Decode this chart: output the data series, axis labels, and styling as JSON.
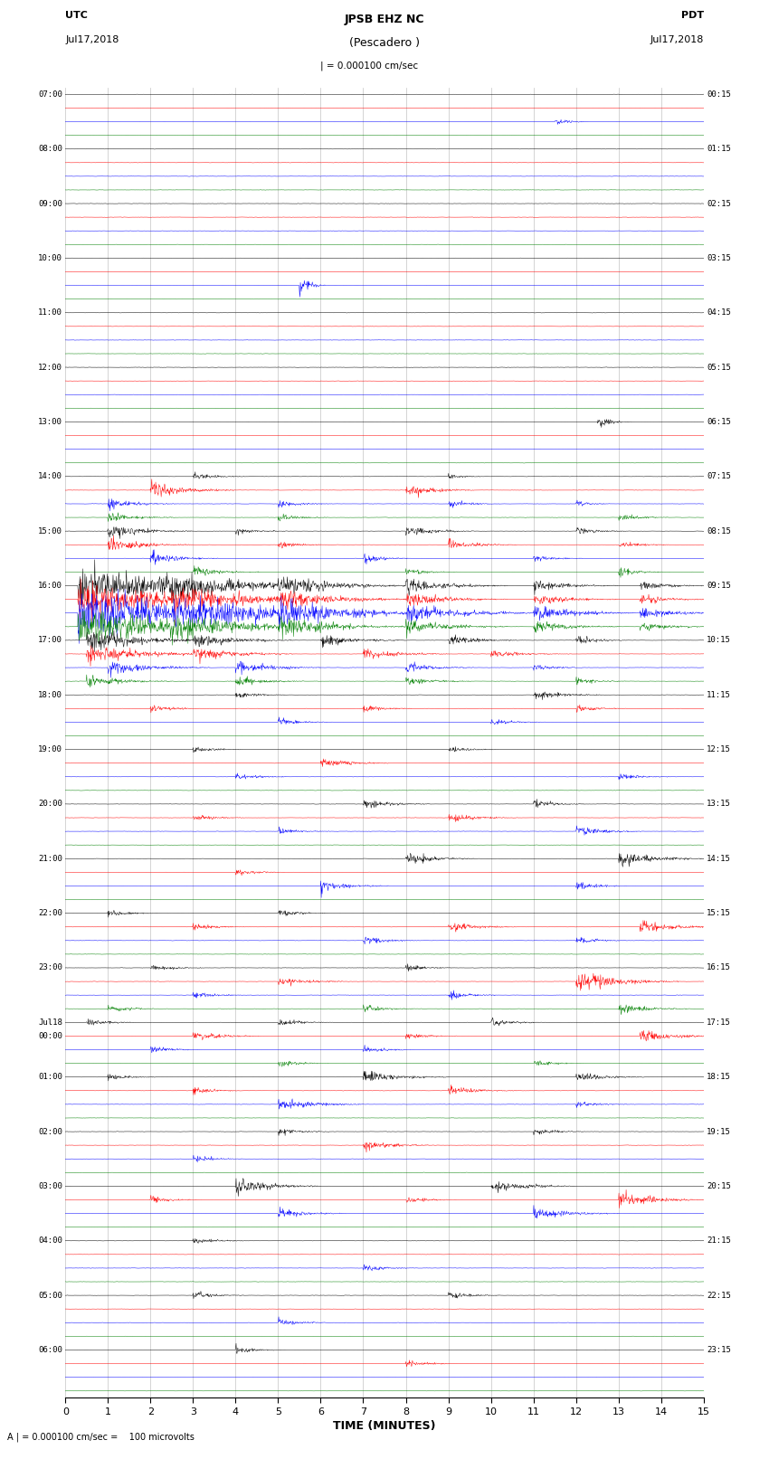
{
  "title_line1": "JPSB EHZ NC",
  "title_line2": "(Pescadero )",
  "scale_label": "= 0.000100 cm/sec",
  "left_label_line1": "UTC",
  "left_label_line2": "Jul17,2018",
  "right_label_line1": "PDT",
  "right_label_line2": "Jul17,2018",
  "bottom_note": "= 0.000100 cm/sec =    100 microvolts",
  "xlabel": "TIME (MINUTES)",
  "xlim": [
    0,
    15
  ],
  "xticks": [
    0,
    1,
    2,
    3,
    4,
    5,
    6,
    7,
    8,
    9,
    10,
    11,
    12,
    13,
    14,
    15
  ],
  "trace_colors_cycle": [
    "black",
    "red",
    "blue",
    "green"
  ],
  "left_times": [
    "07:00",
    "",
    "",
    "",
    "08:00",
    "",
    "",
    "",
    "09:00",
    "",
    "",
    "",
    "10:00",
    "",
    "",
    "",
    "11:00",
    "",
    "",
    "",
    "12:00",
    "",
    "",
    "",
    "13:00",
    "",
    "",
    "",
    "14:00",
    "",
    "",
    "",
    "15:00",
    "",
    "",
    "",
    "16:00",
    "",
    "",
    "",
    "17:00",
    "",
    "",
    "",
    "18:00",
    "",
    "",
    "",
    "19:00",
    "",
    "",
    "",
    "20:00",
    "",
    "",
    "",
    "21:00",
    "",
    "",
    "",
    "22:00",
    "",
    "",
    "",
    "23:00",
    "",
    "",
    "",
    "Jul18",
    "00:00",
    "",
    "",
    "01:00",
    "",
    "",
    "",
    "02:00",
    "",
    "",
    "",
    "03:00",
    "",
    "",
    "",
    "04:00",
    "",
    "",
    "",
    "05:00",
    "",
    "",
    "",
    "06:00",
    "",
    "",
    ""
  ],
  "right_times": [
    "00:15",
    "",
    "",
    "",
    "01:15",
    "",
    "",
    "",
    "02:15",
    "",
    "",
    "",
    "03:15",
    "",
    "",
    "",
    "04:15",
    "",
    "",
    "",
    "05:15",
    "",
    "",
    "",
    "06:15",
    "",
    "",
    "",
    "07:15",
    "",
    "",
    "",
    "08:15",
    "",
    "",
    "",
    "09:15",
    "",
    "",
    "",
    "10:15",
    "",
    "",
    "",
    "11:15",
    "",
    "",
    "",
    "12:15",
    "",
    "",
    "",
    "13:15",
    "",
    "",
    "",
    "14:15",
    "",
    "",
    "",
    "15:15",
    "",
    "",
    "",
    "16:15",
    "",
    "",
    "",
    "17:15",
    "",
    "",
    "",
    "18:15",
    "",
    "",
    "",
    "19:15",
    "",
    "",
    "",
    "20:15",
    "",
    "",
    "",
    "21:15",
    "",
    "",
    "",
    "22:15",
    "",
    "",
    "",
    "23:15",
    "",
    "",
    ""
  ],
  "bg_color": "white",
  "grid_color": "#aaaaaa",
  "n_traces": 96,
  "noise_amplitude": 0.08,
  "seed": 12345
}
